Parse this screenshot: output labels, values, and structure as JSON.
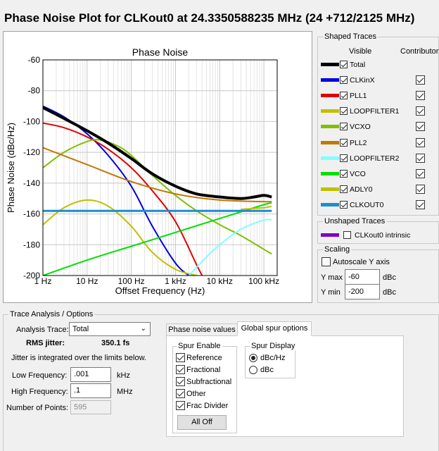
{
  "title": "Phase Noise Plot for CLKout0 at 24.3350588235 MHz (24 +712/2125 MHz)",
  "chart_data": {
    "type": "line",
    "title": "Phase Noise",
    "xlabel": "Offset Frequency (Hz)",
    "ylabel": "Phase Noise (dBc/Hz)",
    "x_scale": "log",
    "xlim": [
      1,
      200000
    ],
    "ylim": [
      -200,
      -60
    ],
    "grid": true,
    "x_ticks": [
      {
        "v": 1,
        "label": "1 Hz"
      },
      {
        "v": 10,
        "label": "10 Hz"
      },
      {
        "v": 100,
        "label": "100 Hz"
      },
      {
        "v": 1000,
        "label": "1 kHz"
      },
      {
        "v": 10000,
        "label": "10 kHz"
      },
      {
        "v": 100000,
        "label": "100 kHz"
      }
    ],
    "y_ticks": [
      {
        "v": -60,
        "label": "-60"
      },
      {
        "v": -80,
        "label": "-80"
      },
      {
        "v": -100,
        "label": "-100"
      },
      {
        "v": -120,
        "label": "-120"
      },
      {
        "v": -140,
        "label": "-140"
      },
      {
        "v": -160,
        "label": "-160"
      },
      {
        "v": -180,
        "label": "-180"
      },
      {
        "v": -200,
        "label": "-200"
      }
    ],
    "series": [
      {
        "name": "CLKinX",
        "color": "#0000e0",
        "width": 2,
        "x": [
          1,
          3,
          10,
          30,
          100,
          300,
          1000,
          2000
        ],
        "y": [
          -90,
          -97,
          -108,
          -122,
          -142,
          -168,
          -192,
          -200
        ]
      },
      {
        "name": "PLL1",
        "color": "#e00000",
        "width": 2,
        "x": [
          1,
          3,
          10,
          30,
          100,
          300,
          1000,
          3000,
          4000
        ],
        "y": [
          -101,
          -104,
          -110,
          -118,
          -130,
          -145,
          -165,
          -193,
          -200
        ]
      },
      {
        "name": "LOOPFILTER1",
        "color": "#c0c000",
        "width": 2,
        "x": [
          1,
          3,
          10,
          30,
          100,
          300,
          1000,
          3000
        ],
        "y": [
          -167,
          -156,
          -151,
          -155,
          -168,
          -185,
          -196,
          -200
        ]
      },
      {
        "name": "VCXO",
        "color": "#80c000",
        "width": 2,
        "x": [
          1,
          3,
          10,
          20,
          50,
          100,
          300,
          1000,
          3000,
          10000,
          30000,
          100000,
          150000
        ],
        "y": [
          -130,
          -120,
          -113,
          -112,
          -116,
          -122,
          -135,
          -148,
          -158,
          -167,
          -174,
          -183,
          -186
        ]
      },
      {
        "name": "PLL2",
        "color": "#c07800",
        "width": 2,
        "x": [
          1,
          10,
          100,
          1000,
          10000,
          100000,
          150000
        ],
        "y": [
          -117,
          -128,
          -139,
          -147,
          -151,
          -152,
          -152
        ]
      },
      {
        "name": "LOOPFILTER2",
        "color": "#80ffff",
        "width": 2,
        "x": [
          2000,
          5000,
          10000,
          30000,
          100000,
          150000
        ],
        "y": [
          -200,
          -188,
          -180,
          -170,
          -164,
          -164
        ]
      },
      {
        "name": "VCO",
        "color": "#00e000",
        "width": 2,
        "x": [
          1,
          10,
          100,
          1000,
          10000,
          100000,
          150000
        ],
        "y": [
          -200,
          -190,
          -181,
          -172,
          -163,
          -154,
          -153
        ]
      },
      {
        "name": "ADLY0",
        "color": "#c0c000",
        "width": 2,
        "x": [
          30000,
          100000,
          150000
        ],
        "y": [
          -157,
          -156,
          -155
        ]
      },
      {
        "name": "CLKOUT0",
        "color": "#1e8cd2",
        "width": 3,
        "x": [
          1,
          150000
        ],
        "y": [
          -158,
          -158
        ]
      },
      {
        "name": "Total",
        "color": "#000000",
        "width": 4,
        "x": [
          1,
          3,
          10,
          30,
          100,
          300,
          1000,
          3000,
          10000,
          30000,
          60000,
          100000,
          150000
        ],
        "y": [
          -91,
          -98,
          -106,
          -114,
          -124,
          -134,
          -142,
          -147,
          -149,
          -150,
          -149,
          -148,
          -149
        ]
      }
    ]
  },
  "shaped_traces": {
    "title": "Shaped Traces",
    "col_visible": "Visible",
    "col_contributor": "Contributor",
    "rows": [
      {
        "label": "Total",
        "color": "#000000",
        "visible": true,
        "contrib": null
      },
      {
        "label": "CLKinX",
        "color": "#0000e0",
        "visible": true,
        "contrib": true
      },
      {
        "label": "PLL1",
        "color": "#e00000",
        "visible": true,
        "contrib": true
      },
      {
        "label": "LOOPFILTER1",
        "color": "#c0c000",
        "visible": true,
        "contrib": true
      },
      {
        "label": "VCXO",
        "color": "#80c000",
        "visible": true,
        "contrib": true
      },
      {
        "label": "PLL2",
        "color": "#c07800",
        "visible": true,
        "contrib": true
      },
      {
        "label": "LOOPFILTER2",
        "color": "#80ffff",
        "visible": true,
        "contrib": true
      },
      {
        "label": "VCO",
        "color": "#00e000",
        "visible": true,
        "contrib": true
      },
      {
        "label": "ADLY0",
        "color": "#c0c000",
        "visible": true,
        "contrib": true
      },
      {
        "label": "CLKOUT0",
        "color": "#1e8cd2",
        "visible": true,
        "contrib": true
      }
    ]
  },
  "unshaped": {
    "title": "Unshaped Traces",
    "label": "CLKout0 intrinsic",
    "color": "#8000c0"
  },
  "scaling": {
    "title": "Scaling",
    "autoscale_label": "Autoscale Y axis",
    "ymax_label": "Y max",
    "ymax_value": "-60",
    "ymin_label": "Y min",
    "ymin_value": "-200",
    "unit": "dBc"
  },
  "trace_analysis": {
    "title": "Trace Analysis / Options",
    "analysis_trace_label": "Analysis Trace:",
    "analysis_trace_value": "Total",
    "rms_label": "RMS jitter:",
    "rms_value": "350.1 fs",
    "note": "Jitter is integrated over the limits below.",
    "low_label": "Low Frequency:",
    "low_value": ".001",
    "low_unit": "kHz",
    "high_label": "High Frequency:",
    "high_value": ".1",
    "high_unit": "MHz",
    "points_label": "Number of Points:",
    "points_value": "595"
  },
  "tabs": {
    "tab1": "Phase noise values",
    "tab2": "Global spur options"
  },
  "spur_enable": {
    "title": "Spur Enable",
    "items": [
      "Reference",
      "Fractional",
      "Subfractional",
      "Other",
      "Frac Divider"
    ],
    "button": "All Off"
  },
  "spur_display": {
    "title": "Spur Display",
    "opt1": "dBc/Hz",
    "opt2": "dBc"
  }
}
